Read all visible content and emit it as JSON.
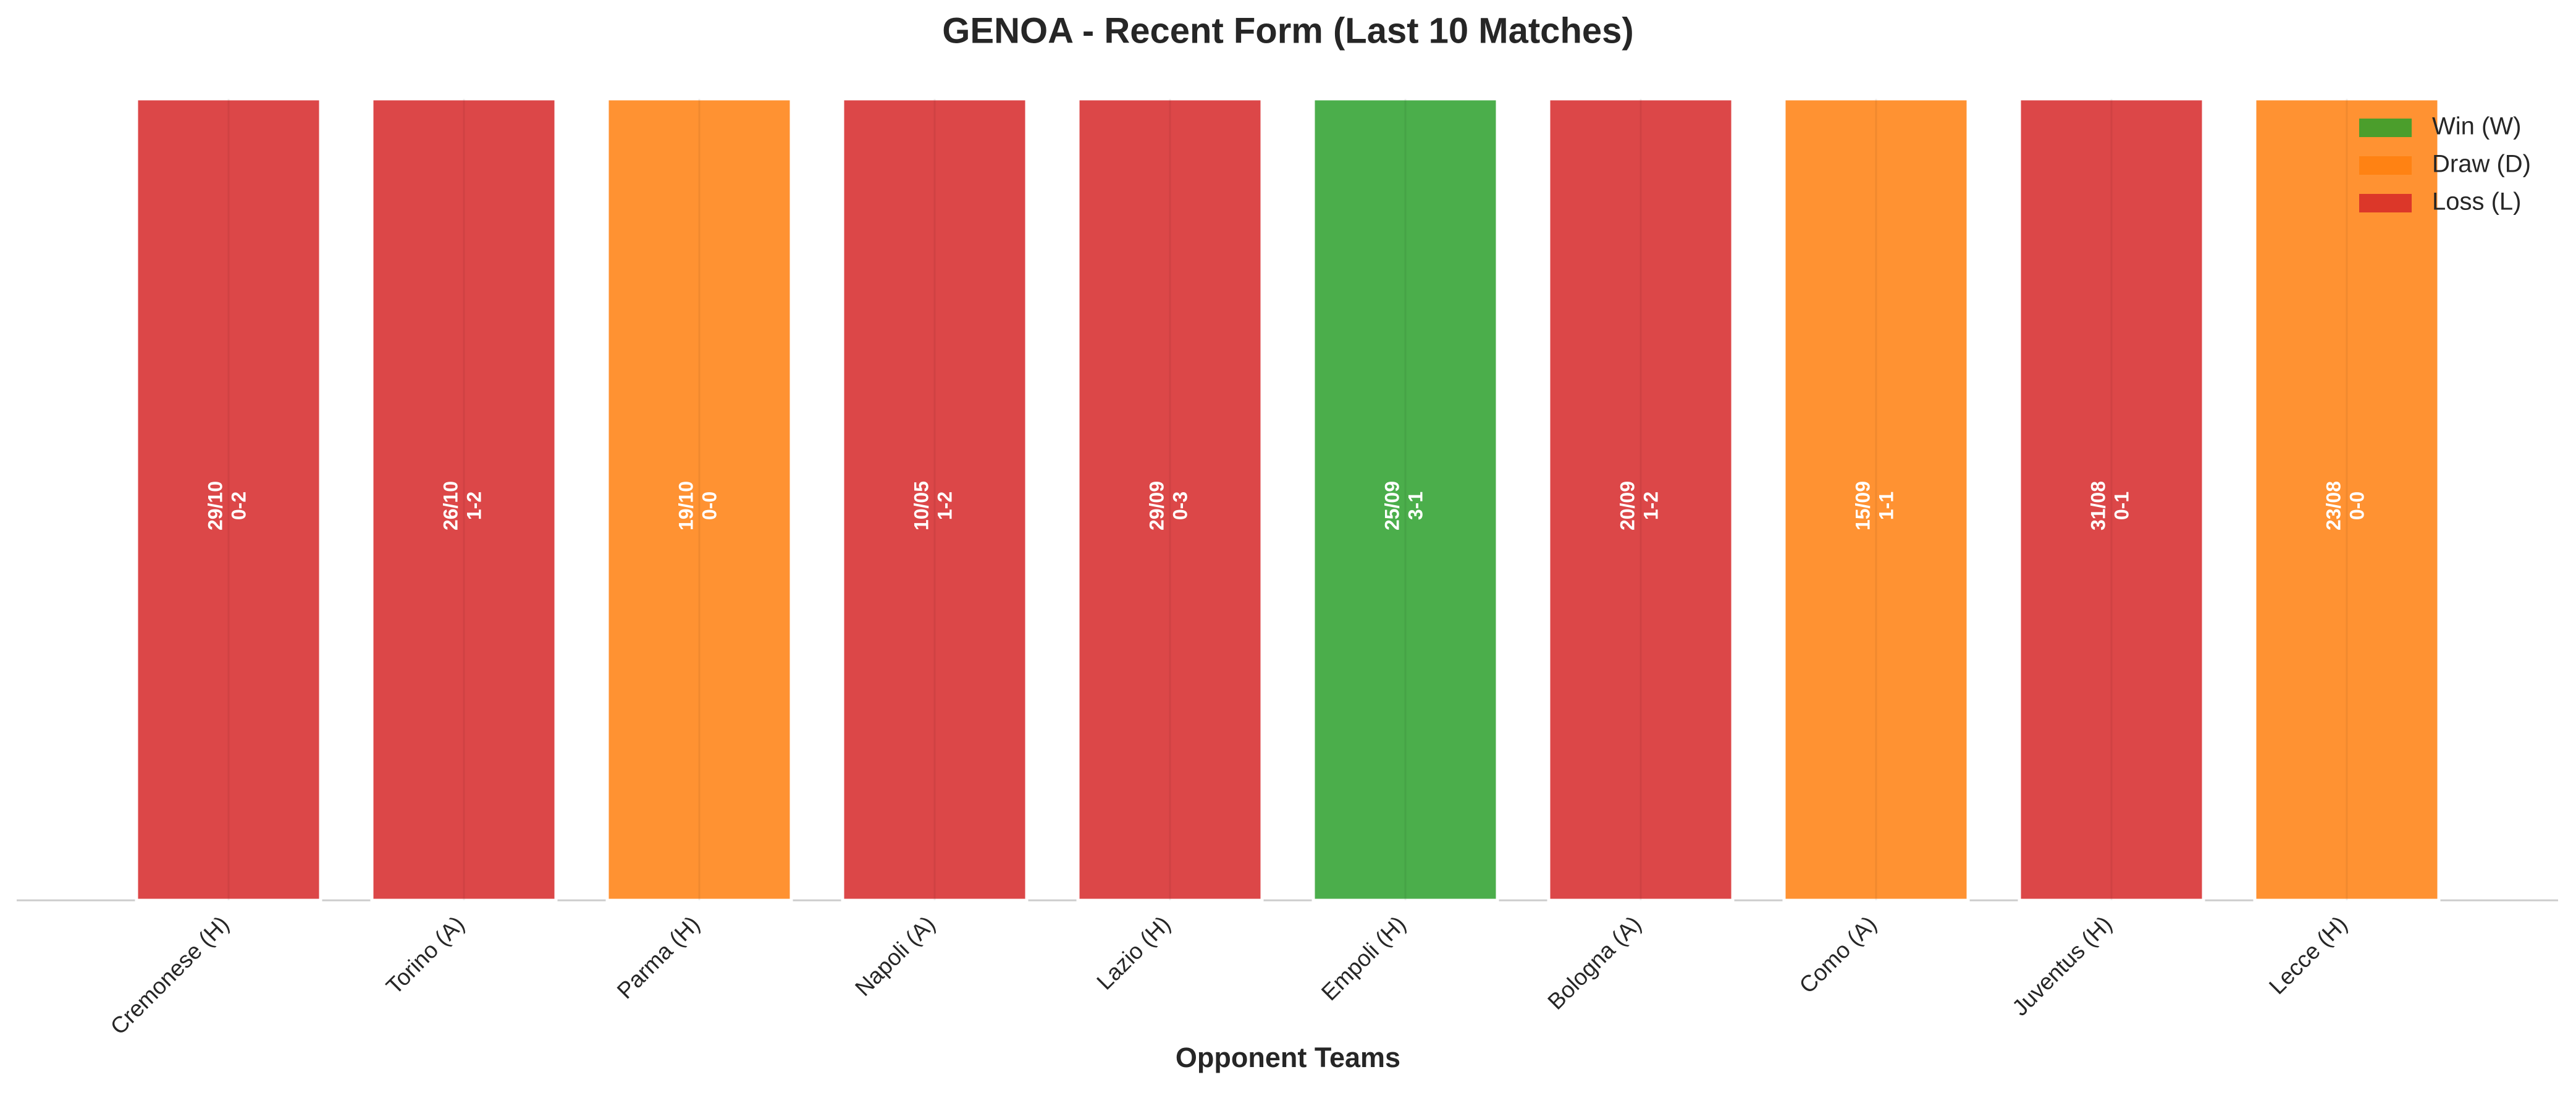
{
  "chart_data": {
    "type": "bar",
    "title": "GENOA - Recent Form (Last 10 Matches)",
    "x_label": "Opponent Teams",
    "categories": [
      "Cremonese (H)",
      "Torino (A)",
      "Parma (H)",
      "Napoli (A)",
      "Lazio (H)",
      "Empoli (H)",
      "Bologna (A)",
      "Como (A)",
      "Juventus (H)",
      "Lecce (H)"
    ],
    "values": [
      1,
      1,
      1,
      1,
      1,
      1,
      1,
      1,
      1,
      1
    ],
    "dates": [
      "29/10",
      "26/10",
      "19/10",
      "10/05",
      "29/09",
      "25/09",
      "20/09",
      "15/09",
      "31/08",
      "23/08"
    ],
    "scores": [
      "0-2",
      "1-2",
      "0-0",
      "1-2",
      "0-3",
      "3-1",
      "1-2",
      "1-1",
      "0-1",
      "0-0"
    ],
    "colors": [
      "#d62728",
      "#d62728",
      "#ff7f0e",
      "#d62728",
      "#d62728",
      "#2ca02c",
      "#d62728",
      "#ff7f0e",
      "#d62728",
      "#ff7f0e"
    ],
    "ylim": [
      0,
      1
    ],
    "legend": [
      {
        "name": "Win (W)",
        "color": "#2ca02c"
      },
      {
        "name": "Draw (D)",
        "color": "#ff7f0e"
      },
      {
        "name": "Loss (L)",
        "color": "#d62728"
      }
    ],
    "legend_position": "upper right"
  }
}
